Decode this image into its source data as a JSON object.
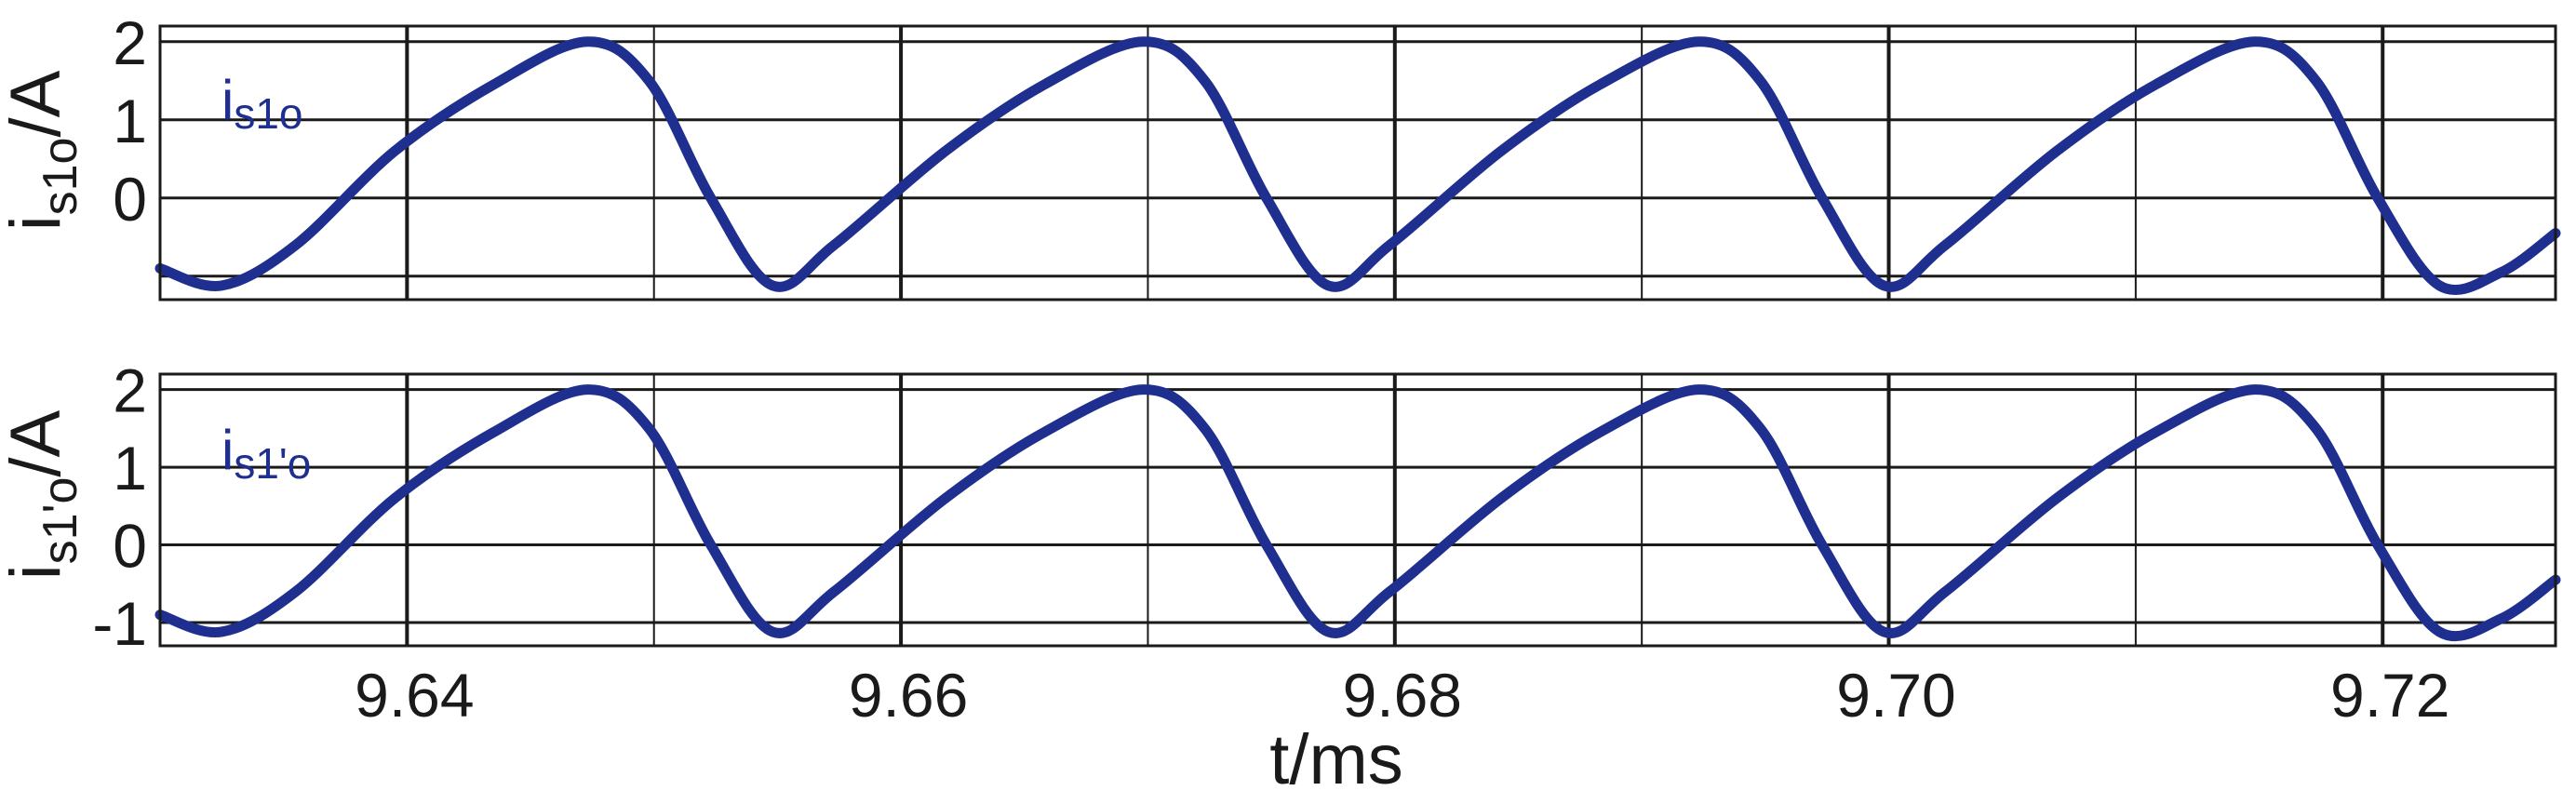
{
  "chart_data": [
    {
      "type": "line",
      "ylabel": "i",
      "ylabel_sub": "s1o",
      "ylabel_unit": "/A",
      "xlim": [
        9.63,
        9.727
      ],
      "ylim": [
        -1.3,
        2.2
      ],
      "yticks": [
        2,
        1,
        0
      ],
      "ytick_labels": [
        "2",
        "1",
        "0"
      ],
      "xticks": [
        9.64,
        9.66,
        9.68,
        9.7,
        9.72
      ],
      "xtick_labels": [],
      "grid": true,
      "legend": {
        "main": "i",
        "sub": "s1o",
        "placement": "top-left"
      },
      "series": [
        {
          "color": "#1f2f8f",
          "x": [
            9.63,
            9.6325,
            9.6355,
            9.6395,
            9.6435,
            9.6473,
            9.6498,
            9.6523,
            9.6548,
            9.6573,
            9.6618,
            9.6658,
            9.6698,
            9.6723,
            9.6748,
            9.6773,
            9.6798,
            9.6843,
            9.6883,
            9.6923,
            9.6948,
            9.6973,
            9.6998,
            9.7023,
            9.7068,
            9.7108,
            9.7148,
            9.7173,
            9.7198,
            9.7223,
            9.7248,
            9.727
          ],
          "y": [
            -0.9,
            -1.12,
            -0.6,
            0.6,
            1.45,
            2.0,
            1.5,
            0.0,
            -1.12,
            -0.6,
            0.6,
            1.45,
            2.0,
            1.5,
            0.0,
            -1.12,
            -0.6,
            0.6,
            1.45,
            2.0,
            1.5,
            0.0,
            -1.12,
            -0.6,
            0.6,
            1.45,
            2.0,
            1.5,
            0.0,
            -1.12,
            -0.95,
            -0.45
          ]
        }
      ]
    },
    {
      "type": "line",
      "ylabel": "i",
      "ylabel_sub": "s1'o",
      "ylabel_unit": "/A",
      "xlabel": "t/ms",
      "xlim": [
        9.63,
        9.727
      ],
      "ylim": [
        -1.3,
        2.2
      ],
      "yticks": [
        2,
        1,
        0,
        -1
      ],
      "ytick_labels": [
        "2",
        "1",
        "0",
        "-1"
      ],
      "xticks": [
        9.64,
        9.66,
        9.68,
        9.7,
        9.72
      ],
      "xtick_labels": [
        "9.64",
        "9.66",
        "9.68",
        "9.70",
        "9.72"
      ],
      "grid": true,
      "legend": {
        "main": "i",
        "sub": "s1'o",
        "placement": "top-left"
      },
      "series": [
        {
          "color": "#1f2f8f",
          "x": [
            9.63,
            9.6325,
            9.6355,
            9.6395,
            9.6435,
            9.6473,
            9.6498,
            9.6523,
            9.6548,
            9.6573,
            9.6618,
            9.6658,
            9.6698,
            9.6723,
            9.6748,
            9.6773,
            9.6798,
            9.6843,
            9.6883,
            9.6923,
            9.6948,
            9.6973,
            9.6998,
            9.7023,
            9.7068,
            9.7108,
            9.7148,
            9.7173,
            9.7198,
            9.7223,
            9.7248,
            9.727
          ],
          "y": [
            -0.9,
            -1.12,
            -0.6,
            0.6,
            1.45,
            2.0,
            1.5,
            0.0,
            -1.12,
            -0.6,
            0.6,
            1.45,
            2.0,
            1.5,
            0.0,
            -1.12,
            -0.6,
            0.6,
            1.45,
            2.0,
            1.5,
            0.0,
            -1.12,
            -0.6,
            0.6,
            1.45,
            2.0,
            1.5,
            0.0,
            -1.12,
            -0.95,
            -0.45
          ]
        }
      ]
    }
  ]
}
